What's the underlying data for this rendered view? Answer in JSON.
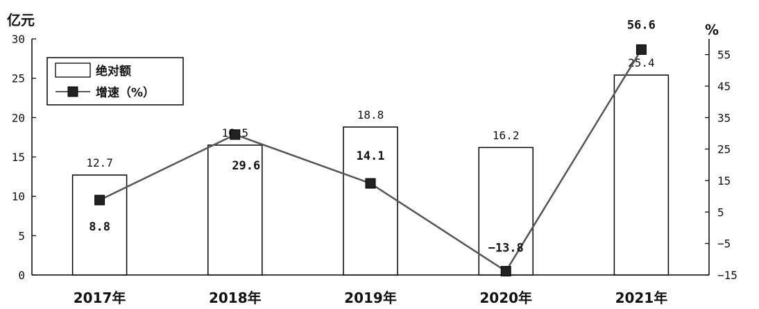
{
  "chart_data": {
    "type": "bar",
    "categories": [
      "2017年",
      "2018年",
      "2019年",
      "2020年",
      "2021年"
    ],
    "series": [
      {
        "name": "绝对额",
        "type": "bar",
        "axis": "left",
        "values": [
          12.7,
          16.5,
          18.8,
          16.2,
          25.4
        ],
        "labels": [
          "12.7",
          "16.5",
          "18.8",
          "16.2",
          "25.4"
        ]
      },
      {
        "name": "增速（%）",
        "type": "line",
        "axis": "right",
        "values": [
          8.8,
          29.6,
          14.1,
          -13.8,
          56.6
        ],
        "labels": [
          "8.8",
          "29.6",
          "14.1",
          "−13.8",
          "56.6"
        ]
      }
    ],
    "y_left": {
      "unit": "亿元",
      "range": [
        0,
        30
      ],
      "ticks": [
        0,
        5,
        10,
        15,
        20,
        25,
        30
      ]
    },
    "y_right": {
      "unit": "%",
      "range": [
        -15,
        60
      ],
      "ticks": [
        -15,
        -5,
        5,
        15,
        25,
        35,
        45,
        55
      ]
    },
    "grid": false,
    "legend": {
      "position": "top-left",
      "items": [
        "绝对额",
        "增速（%）"
      ]
    },
    "colors": {
      "bar_fill": "#ffffff",
      "bar_stroke": "#000000",
      "line": "#555555",
      "marker": "#222222"
    }
  }
}
